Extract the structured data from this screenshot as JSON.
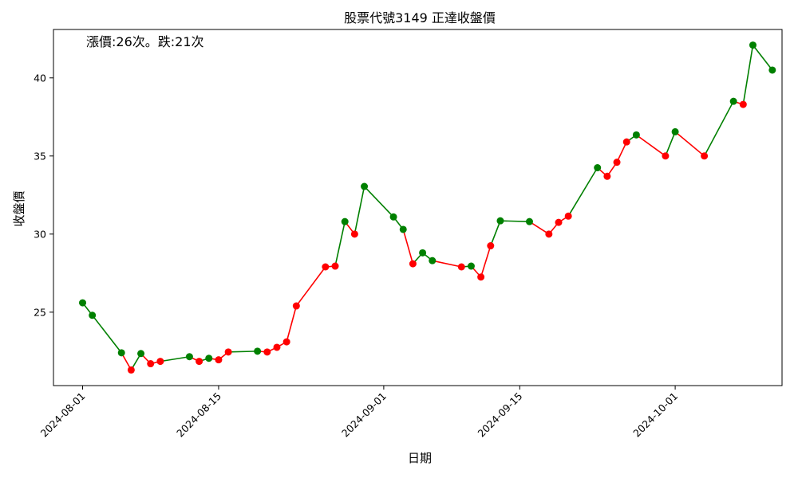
{
  "chart_data": {
    "type": "line",
    "title": "股票代號3149 正達收盤價",
    "xlabel": "日期",
    "ylabel": "收盤價",
    "annotation": "漲價:26次。跌:21次",
    "colors": {
      "up": "#ff0000",
      "down": "#008000"
    },
    "grid": false,
    "legend": "none",
    "xlim": [
      "2024-07-29",
      "2024-10-12"
    ],
    "ylim": [
      20.3,
      43.1
    ],
    "x_ticks": [
      "2024-08-01",
      "2024-08-15",
      "2024-09-01",
      "2024-09-15",
      "2024-10-01"
    ],
    "y_ticks": [
      25,
      30,
      35,
      40
    ],
    "points": [
      {
        "x": "2024-08-01",
        "y": 25.6,
        "change": "down"
      },
      {
        "x": "2024-08-02",
        "y": 24.8,
        "change": "down"
      },
      {
        "x": "2024-08-05",
        "y": 22.4,
        "change": "down"
      },
      {
        "x": "2024-08-06",
        "y": 21.3,
        "change": "up"
      },
      {
        "x": "2024-08-07",
        "y": 22.35,
        "change": "down"
      },
      {
        "x": "2024-08-08",
        "y": 21.7,
        "change": "up"
      },
      {
        "x": "2024-08-09",
        "y": 21.85,
        "change": "up"
      },
      {
        "x": "2024-08-12",
        "y": 22.15,
        "change": "down"
      },
      {
        "x": "2024-08-13",
        "y": 21.85,
        "change": "up"
      },
      {
        "x": "2024-08-14",
        "y": 22.05,
        "change": "down"
      },
      {
        "x": "2024-08-15",
        "y": 21.95,
        "change": "up"
      },
      {
        "x": "2024-08-16",
        "y": 22.45,
        "change": "up"
      },
      {
        "x": "2024-08-19",
        "y": 22.5,
        "change": "down"
      },
      {
        "x": "2024-08-20",
        "y": 22.45,
        "change": "up"
      },
      {
        "x": "2024-08-21",
        "y": 22.75,
        "change": "up"
      },
      {
        "x": "2024-08-22",
        "y": 23.1,
        "change": "up"
      },
      {
        "x": "2024-08-23",
        "y": 25.4,
        "change": "up"
      },
      {
        "x": "2024-08-26",
        "y": 27.9,
        "change": "up"
      },
      {
        "x": "2024-08-27",
        "y": 27.95,
        "change": "up"
      },
      {
        "x": "2024-08-28",
        "y": 30.8,
        "change": "down"
      },
      {
        "x": "2024-08-29",
        "y": 30.0,
        "change": "up"
      },
      {
        "x": "2024-08-30",
        "y": 33.05,
        "change": "down"
      },
      {
        "x": "2024-09-02",
        "y": 31.1,
        "change": "down"
      },
      {
        "x": "2024-09-03",
        "y": 30.3,
        "change": "down"
      },
      {
        "x": "2024-09-04",
        "y": 28.1,
        "change": "up"
      },
      {
        "x": "2024-09-05",
        "y": 28.8,
        "change": "down"
      },
      {
        "x": "2024-09-06",
        "y": 28.3,
        "change": "down"
      },
      {
        "x": "2024-09-09",
        "y": 27.9,
        "change": "up"
      },
      {
        "x": "2024-09-10",
        "y": 27.95,
        "change": "down"
      },
      {
        "x": "2024-09-11",
        "y": 27.25,
        "change": "up"
      },
      {
        "x": "2024-09-12",
        "y": 29.25,
        "change": "up"
      },
      {
        "x": "2024-09-13",
        "y": 30.85,
        "change": "down"
      },
      {
        "x": "2024-09-16",
        "y": 30.8,
        "change": "down"
      },
      {
        "x": "2024-09-18",
        "y": 30.0,
        "change": "up"
      },
      {
        "x": "2024-09-19",
        "y": 30.75,
        "change": "up"
      },
      {
        "x": "2024-09-20",
        "y": 31.15,
        "change": "up"
      },
      {
        "x": "2024-09-23",
        "y": 34.25,
        "change": "down"
      },
      {
        "x": "2024-09-24",
        "y": 33.7,
        "change": "up"
      },
      {
        "x": "2024-09-25",
        "y": 34.6,
        "change": "up"
      },
      {
        "x": "2024-09-26",
        "y": 35.9,
        "change": "up"
      },
      {
        "x": "2024-09-27",
        "y": 36.35,
        "change": "down"
      },
      {
        "x": "2024-09-30",
        "y": 35.0,
        "change": "up"
      },
      {
        "x": "2024-10-01",
        "y": 36.55,
        "change": "down"
      },
      {
        "x": "2024-10-04",
        "y": 35.0,
        "change": "up"
      },
      {
        "x": "2024-10-07",
        "y": 38.5,
        "change": "down"
      },
      {
        "x": "2024-10-08",
        "y": 38.3,
        "change": "up"
      },
      {
        "x": "2024-10-09",
        "y": 42.1,
        "change": "down"
      },
      {
        "x": "2024-10-11",
        "y": 40.5,
        "change": "down"
      }
    ]
  }
}
